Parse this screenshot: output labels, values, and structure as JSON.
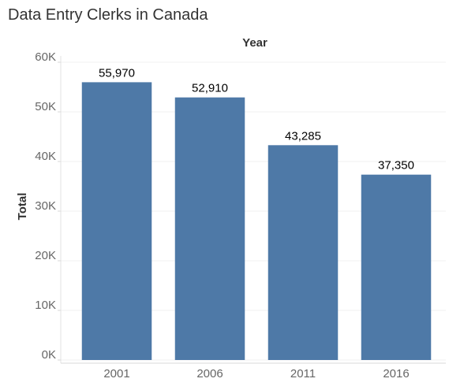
{
  "chart_data": {
    "type": "bar",
    "title": "Data Entry Clerks in Canada",
    "xlabel": "Year",
    "ylabel": "Total",
    "categories": [
      "2001",
      "2006",
      "2011",
      "2016"
    ],
    "values": [
      55970,
      52910,
      43285,
      37350
    ],
    "value_labels": [
      "55,970",
      "52,910",
      "43,285",
      "37,350"
    ],
    "ylim": [
      0,
      60000
    ],
    "y_ticks": [
      0,
      10000,
      20000,
      30000,
      40000,
      50000,
      60000
    ],
    "y_tick_labels": [
      "0K",
      "10K",
      "20K",
      "30K",
      "40K",
      "50K",
      "60K"
    ],
    "xlabel_position": "top",
    "grid": true,
    "legend": "none",
    "bar_color": "#4e79a7"
  }
}
